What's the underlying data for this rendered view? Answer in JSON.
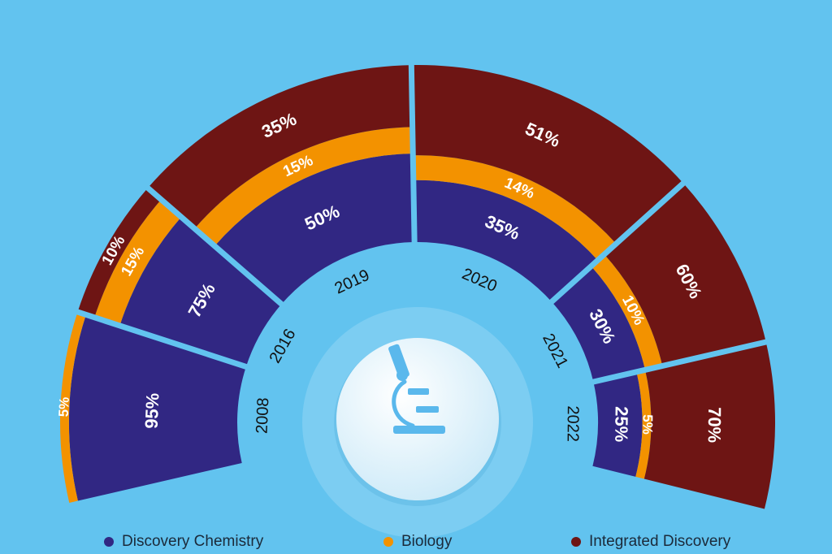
{
  "chart_data": {
    "type": "radial-stacked-bar",
    "series": [
      {
        "name": "Discovery Chemistry",
        "color": "#312783"
      },
      {
        "name": "Biology",
        "color": "#f39200"
      },
      {
        "name": "Integrated Discovery",
        "color": "#6e1514"
      }
    ],
    "categories": [
      "2008",
      "2016",
      "2019",
      "2020",
      "2021",
      "2022"
    ],
    "values": [
      {
        "year": "2008",
        "discovery_chemistry": 95,
        "biology": 5,
        "integrated_discovery": 0
      },
      {
        "year": "2016",
        "discovery_chemistry": 75,
        "biology": 15,
        "integrated_discovery": 10
      },
      {
        "year": "2019",
        "discovery_chemistry": 50,
        "biology": 15,
        "integrated_discovery": 35
      },
      {
        "year": "2020",
        "discovery_chemistry": 35,
        "biology": 14,
        "integrated_discovery": 51
      },
      {
        "year": "2021",
        "discovery_chemistry": 30,
        "biology": 10,
        "integrated_discovery": 60
      },
      {
        "year": "2022",
        "discovery_chemistry": 25,
        "biology": 5,
        "integrated_discovery": 70
      }
    ],
    "unit": "%",
    "center_icon": "microscope-icon"
  },
  "colors": {
    "background": "#62c3ef",
    "separator": "#62c3ef",
    "year_label": "#111111",
    "value_label": "#ffffff",
    "icon": "#5ab8ec"
  }
}
